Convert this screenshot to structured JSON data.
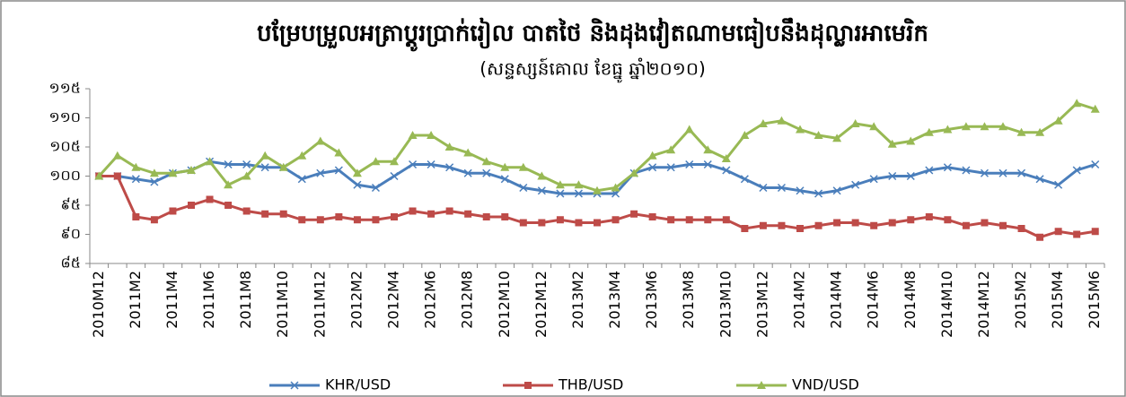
{
  "chart_data": {
    "type": "line",
    "title": "បម្រែបម្រួលអត្រាប្តូរប្រាក់រៀល បាតថៃ និងដុងវៀតណាមធៀបនឹងដុល្លារអាមេរិក",
    "subtitle": "(សន្ទស្សន៍គោល ខែធ្នូ ឆ្នាំ២០១០)",
    "categories": [
      "2010M12",
      null,
      "2011M2",
      null,
      "2011M4",
      null,
      "2011M6",
      null,
      "2011M8",
      null,
      "2011M10",
      null,
      "2011M12",
      null,
      "2012M2",
      null,
      "2012M4",
      null,
      "2012M6",
      null,
      "2012M8",
      null,
      "2012M10",
      null,
      "2012M12",
      null,
      "2013M2",
      null,
      "2013M4",
      null,
      "2013M6",
      null,
      "2013M8",
      null,
      "2013M10",
      null,
      "2013M12",
      null,
      "2014M2",
      null,
      "2014M4",
      null,
      "2014M6",
      null,
      "2014M8",
      null,
      "2014M10",
      null,
      "2014M12",
      null,
      "2015M2",
      null,
      "2015M4",
      null,
      "2015M6"
    ],
    "series": [
      {
        "name": "KHR/USD",
        "color": "#4a7ebb",
        "marker": "x",
        "values": [
          100,
          100,
          99.5,
          99,
          100.5,
          101,
          102.5,
          102,
          102,
          101.5,
          101.5,
          99.5,
          100.5,
          101,
          98.5,
          98,
          100,
          102,
          102,
          101.5,
          100.5,
          100.5,
          99.5,
          98,
          97.5,
          97,
          97,
          97,
          97,
          100.5,
          101.5,
          101.5,
          102,
          102,
          101,
          99.5,
          98,
          98,
          97.5,
          97,
          97.5,
          98.5,
          99.5,
          100,
          100,
          101,
          101.5,
          101,
          100.5,
          100.5,
          100.5,
          99.5,
          98.5,
          101,
          102
        ]
      },
      {
        "name": "THB/USD",
        "color": "#be4b48",
        "marker": "square",
        "values": [
          100,
          100,
          93,
          92.5,
          94,
          95,
          96,
          95,
          94,
          93.5,
          93.5,
          92.5,
          92.5,
          93,
          92.5,
          92.5,
          93,
          94,
          93.5,
          94,
          93.5,
          93,
          93,
          92,
          92,
          92.5,
          92,
          92,
          92.5,
          93.5,
          93,
          92.5,
          92.5,
          92.5,
          92.5,
          91,
          91.5,
          91.5,
          91,
          91.5,
          92,
          92,
          91.5,
          92,
          92.5,
          93,
          92.5,
          91.5,
          92,
          91.5,
          91,
          89.5,
          90.5,
          90,
          90.5
        ]
      },
      {
        "name": "VND/USD",
        "color": "#98b954",
        "marker": "triangle",
        "values": [
          100,
          103.5,
          101.5,
          100.5,
          100.5,
          101,
          102.5,
          98.5,
          100,
          103.5,
          101.5,
          103.5,
          106,
          104,
          100.5,
          102.5,
          102.5,
          107,
          107,
          105,
          104,
          102.5,
          101.5,
          101.5,
          100,
          98.5,
          98.5,
          97.5,
          98,
          100.5,
          103.5,
          104.5,
          108,
          104.5,
          103,
          107,
          109,
          109.5,
          108,
          107,
          106.5,
          109,
          108.5,
          105.5,
          106,
          107.5,
          108,
          108.5,
          108.5,
          108.5,
          107.5,
          107.5,
          109.5,
          112.5,
          111.5
        ]
      }
    ],
    "ylim": [
      85,
      115
    ],
    "yticks": [
      {
        "value": 85,
        "label": "៨៥"
      },
      {
        "value": 90,
        "label": "៩០"
      },
      {
        "value": 95,
        "label": "៩៥"
      },
      {
        "value": 100,
        "label": "១០០"
      },
      {
        "value": 105,
        "label": "១០៥"
      },
      {
        "value": 110,
        "label": "១១០"
      },
      {
        "value": 115,
        "label": "១១៥"
      }
    ],
    "grid": false,
    "legend": "bottom"
  }
}
